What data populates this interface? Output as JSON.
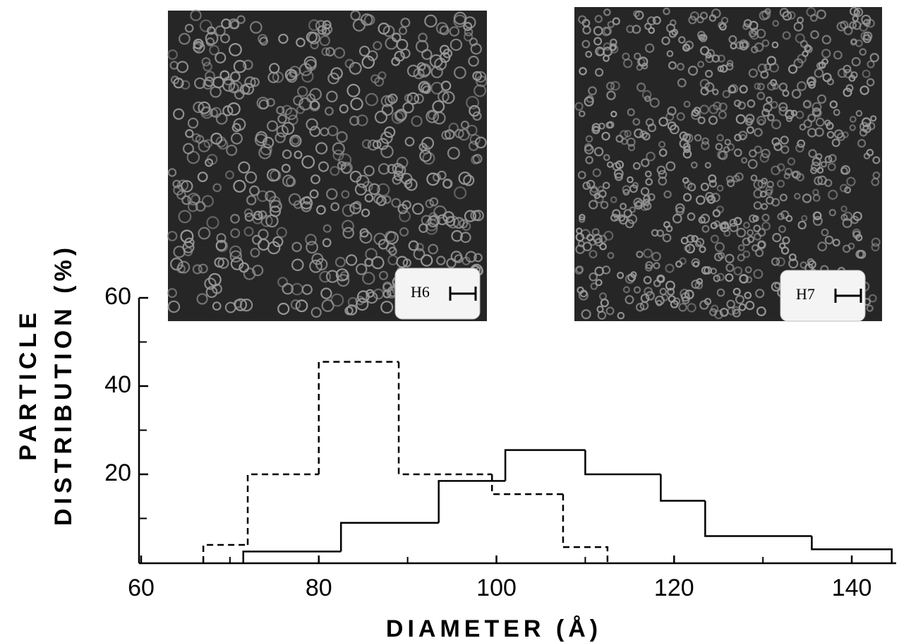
{
  "chart_data": {
    "type": "histogram",
    "y_label_lines": [
      "PARTICLE",
      "DISTRIBUTION (%)"
    ],
    "x_label": "DIAMETER (Å)",
    "xlim": [
      60,
      145
    ],
    "xticks": [
      60,
      80,
      100,
      120,
      140
    ],
    "xminorticks": [
      70,
      90,
      110,
      130
    ],
    "ylim": [
      0,
      60
    ],
    "yticks": [
      20,
      40,
      60
    ],
    "yminorticks": [
      10,
      30,
      50
    ],
    "series": [
      {
        "line_style": "dashed",
        "color": "#000000",
        "bins": [
          67,
          72,
          80,
          89,
          99.5,
          107.5,
          112.5
        ],
        "values": [
          4,
          20,
          45.5,
          20,
          15.5,
          3.5
        ]
      },
      {
        "line_style": "solid",
        "color": "#000000",
        "bins": [
          71.5,
          82.5,
          93.5,
          101,
          110,
          118.5,
          123.5,
          135.5,
          144.5
        ],
        "values": [
          2.5,
          9,
          18.5,
          25.5,
          20,
          14,
          6,
          3
        ]
      }
    ],
    "panels": [
      {
        "label": "H6"
      },
      {
        "label": "H7"
      }
    ]
  }
}
